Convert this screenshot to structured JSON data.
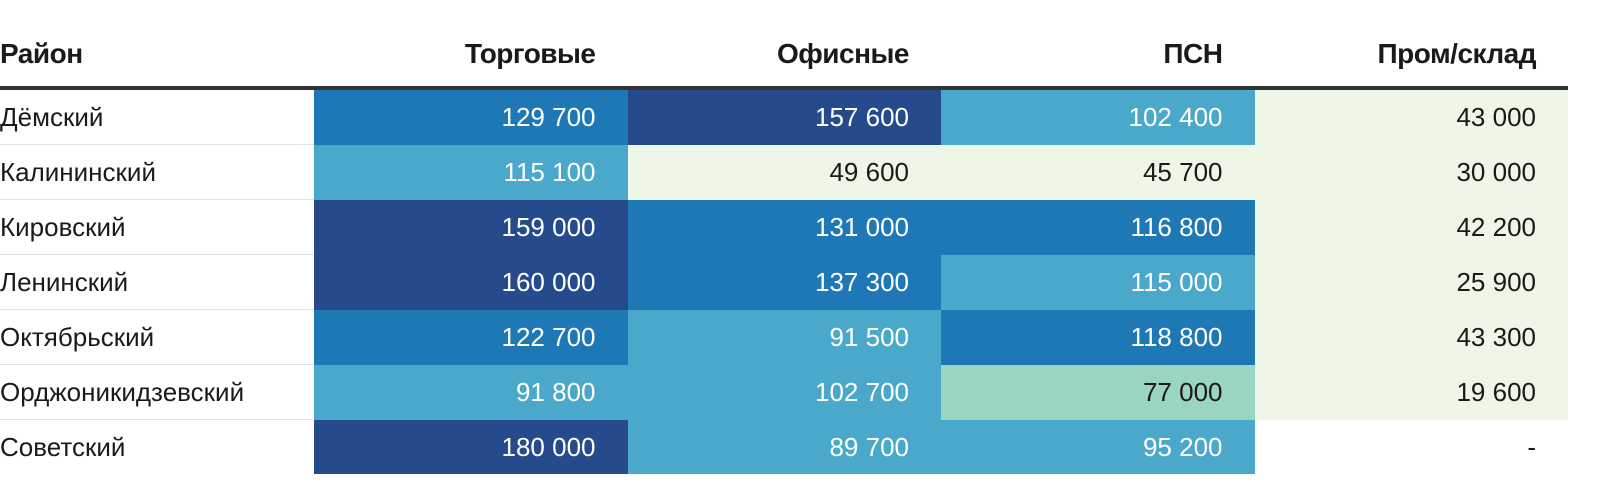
{
  "chart_data": {
    "type": "table",
    "columns": [
      "Район",
      "Торговые",
      "Офисные",
      "ПСН",
      "Пром/склад"
    ],
    "rows": [
      {
        "name": "Дёмский",
        "cells": [
          "129 700",
          "157 600",
          "102 400",
          "43 000"
        ],
        "values": [
          129700,
          157600,
          102400,
          43000
        ]
      },
      {
        "name": "Калининский",
        "cells": [
          "115 100",
          "49 600",
          "45 700",
          "30 000"
        ],
        "values": [
          115100,
          49600,
          45700,
          30000
        ]
      },
      {
        "name": "Кировский",
        "cells": [
          "159 000",
          "131 000",
          "116 800",
          "42 200"
        ],
        "values": [
          159000,
          131000,
          116800,
          42200
        ]
      },
      {
        "name": "Ленинский",
        "cells": [
          "160 000",
          "137 300",
          "115 000",
          "25 900"
        ],
        "values": [
          160000,
          137300,
          115000,
          25900
        ]
      },
      {
        "name": "Октябрьский",
        "cells": [
          "122 700",
          "91 500",
          "118 800",
          "43 300"
        ],
        "values": [
          122700,
          91500,
          118800,
          43300
        ]
      },
      {
        "name": "Орджоникидзевский",
        "cells": [
          "91 800",
          "102 700",
          "77 000",
          "19 600"
        ],
        "values": [
          91800,
          102700,
          77000,
          19600
        ]
      },
      {
        "name": "Советский",
        "cells": [
          "180 000",
          "89 700",
          "95 200",
          "-"
        ],
        "values": [
          180000,
          89700,
          95200,
          null
        ]
      }
    ],
    "color_scale": [
      {
        "min": 0,
        "max": 60000,
        "color": "#eef7e7",
        "text": "#1a1a1a"
      },
      {
        "min": 60000,
        "max": 80000,
        "color": "#99d5c0",
        "text": "#1a1a1a"
      },
      {
        "min": 80000,
        "max": 116000,
        "color": "#4aa8cb",
        "text": "#ffffff"
      },
      {
        "min": 116000,
        "max": 150000,
        "color": "#1f78b6",
        "text": "#ffffff"
      },
      {
        "min": 150000,
        "max": 1000000,
        "color": "#254b8c",
        "text": "#ffffff"
      }
    ],
    "empty_color": "#ffffff"
  }
}
